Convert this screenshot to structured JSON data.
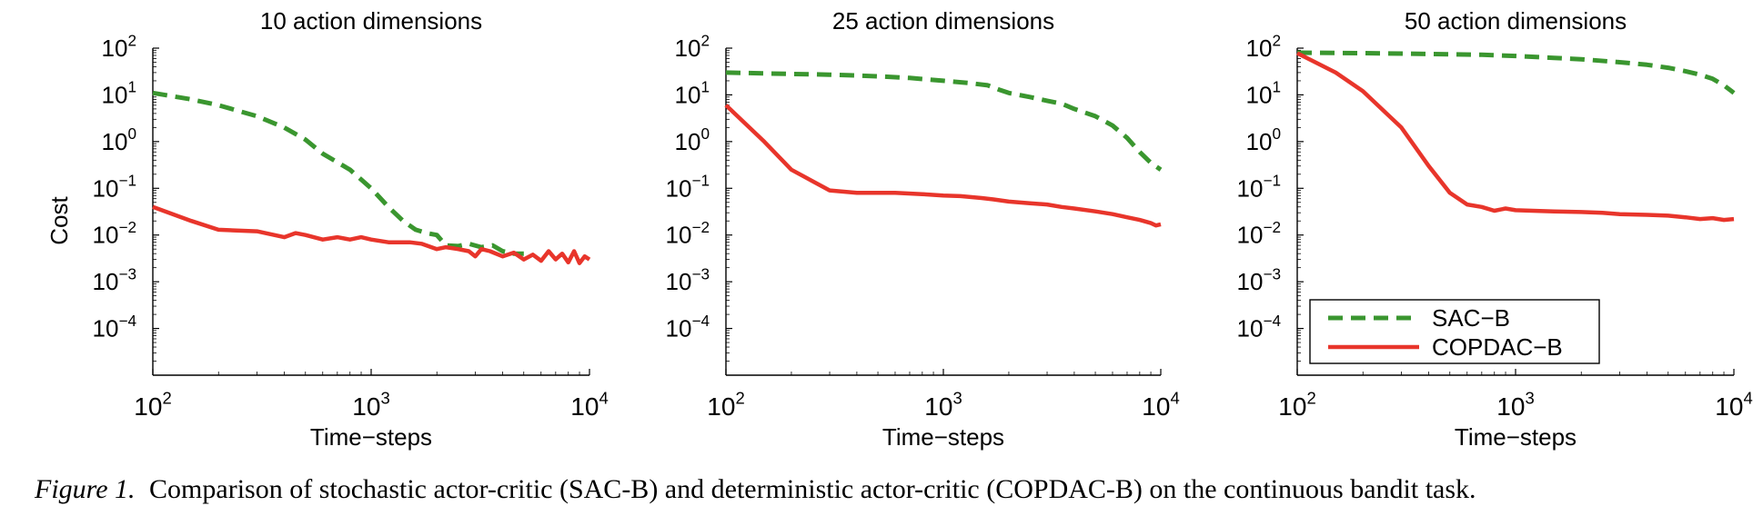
{
  "chart_data": [
    {
      "type": "line",
      "title": "10 action dimensions",
      "xlabel": "Time−steps",
      "ylabel": "Cost",
      "xscale": "log",
      "yscale": "log",
      "xlim": [
        100,
        10000
      ],
      "ylim": [
        1e-05,
        100
      ],
      "x_ticks": [
        {
          "exp": "2"
        },
        {
          "exp": "3"
        },
        {
          "exp": "4"
        }
      ],
      "y_ticks": [
        {
          "exp": "2"
        },
        {
          "exp": "1"
        },
        {
          "exp": "0"
        },
        {
          "exp": "−1"
        },
        {
          "exp": "−2"
        },
        {
          "exp": "−3"
        },
        {
          "exp": "−4"
        }
      ],
      "series": [
        {
          "name": "SAC−B",
          "color": "#3a962f",
          "dash": true,
          "points": [
            [
              100,
              11
            ],
            [
              150,
              8
            ],
            [
              200,
              6
            ],
            [
              300,
              3.5
            ],
            [
              400,
              2
            ],
            [
              500,
              1.1
            ],
            [
              600,
              0.55
            ],
            [
              800,
              0.25
            ],
            [
              1000,
              0.1
            ],
            [
              1200,
              0.04
            ],
            [
              1400,
              0.02
            ],
            [
              1600,
              0.013
            ],
            [
              1800,
              0.011
            ],
            [
              2000,
              0.01
            ],
            [
              2200,
              0.006
            ],
            [
              2500,
              0.0058
            ],
            [
              2800,
              0.0065
            ],
            [
              3200,
              0.0055
            ],
            [
              3600,
              0.006
            ],
            [
              4000,
              0.0045
            ],
            [
              4500,
              0.004
            ],
            [
              5000,
              0.004
            ]
          ]
        },
        {
          "name": "COPDAC−B",
          "color": "#e8352b",
          "dash": false,
          "points": [
            [
              100,
              0.04
            ],
            [
              150,
              0.02
            ],
            [
              200,
              0.013
            ],
            [
              300,
              0.012
            ],
            [
              400,
              0.009
            ],
            [
              450,
              0.011
            ],
            [
              500,
              0.01
            ],
            [
              600,
              0.008
            ],
            [
              700,
              0.009
            ],
            [
              800,
              0.008
            ],
            [
              900,
              0.009
            ],
            [
              1000,
              0.008
            ],
            [
              1200,
              0.007
            ],
            [
              1500,
              0.007
            ],
            [
              1700,
              0.0065
            ],
            [
              2000,
              0.005
            ],
            [
              2200,
              0.0055
            ],
            [
              2500,
              0.005
            ],
            [
              2800,
              0.0045
            ],
            [
              3000,
              0.0035
            ],
            [
              3200,
              0.005
            ],
            [
              3500,
              0.0045
            ],
            [
              4000,
              0.0035
            ],
            [
              4500,
              0.0042
            ],
            [
              5000,
              0.003
            ],
            [
              5500,
              0.0038
            ],
            [
              6000,
              0.0028
            ],
            [
              6500,
              0.0045
            ],
            [
              7000,
              0.003
            ],
            [
              7500,
              0.004
            ],
            [
              8000,
              0.0026
            ],
            [
              8500,
              0.0045
            ],
            [
              9000,
              0.0025
            ],
            [
              9500,
              0.0035
            ],
            [
              10000,
              0.003
            ]
          ]
        }
      ]
    },
    {
      "type": "line",
      "title": "25 action dimensions",
      "xlabel": "Time−steps",
      "ylabel": "",
      "xscale": "log",
      "yscale": "log",
      "xlim": [
        100,
        10000
      ],
      "ylim": [
        1e-05,
        100
      ],
      "x_ticks": [
        {
          "exp": "2"
        },
        {
          "exp": "3"
        },
        {
          "exp": "4"
        }
      ],
      "y_ticks": [
        {
          "exp": "2"
        },
        {
          "exp": "1"
        },
        {
          "exp": "0"
        },
        {
          "exp": "−1"
        },
        {
          "exp": "−2"
        },
        {
          "exp": "−3"
        },
        {
          "exp": "−4"
        }
      ],
      "series": [
        {
          "name": "SAC−B",
          "color": "#3a962f",
          "dash": true,
          "points": [
            [
              100,
              30
            ],
            [
              200,
              28
            ],
            [
              300,
              27
            ],
            [
              400,
              26
            ],
            [
              500,
              25
            ],
            [
              700,
              23
            ],
            [
              1000,
              20
            ],
            [
              1300,
              18
            ],
            [
              1600,
              16
            ],
            [
              1800,
              13
            ],
            [
              2000,
              11
            ],
            [
              2500,
              9
            ],
            [
              3000,
              7.5
            ],
            [
              3500,
              6.5
            ],
            [
              4000,
              5
            ],
            [
              5000,
              3.5
            ],
            [
              6000,
              2.2
            ],
            [
              7000,
              1.2
            ],
            [
              8000,
              0.6
            ],
            [
              9000,
              0.35
            ],
            [
              10000,
              0.25
            ]
          ]
        },
        {
          "name": "COPDAC−B",
          "color": "#e8352b",
          "dash": false,
          "points": [
            [
              100,
              6
            ],
            [
              150,
              1
            ],
            [
              200,
              0.25
            ],
            [
              300,
              0.09
            ],
            [
              400,
              0.08
            ],
            [
              600,
              0.08
            ],
            [
              800,
              0.075
            ],
            [
              1000,
              0.07
            ],
            [
              1200,
              0.068
            ],
            [
              1500,
              0.062
            ],
            [
              1700,
              0.058
            ],
            [
              2000,
              0.052
            ],
            [
              2500,
              0.048
            ],
            [
              3000,
              0.045
            ],
            [
              3500,
              0.04
            ],
            [
              4000,
              0.037
            ],
            [
              5000,
              0.032
            ],
            [
              6000,
              0.028
            ],
            [
              7000,
              0.024
            ],
            [
              8000,
              0.021
            ],
            [
              9000,
              0.018
            ],
            [
              9500,
              0.016
            ],
            [
              10000,
              0.017
            ]
          ]
        }
      ]
    },
    {
      "type": "line",
      "title": "50 action dimensions",
      "xlabel": "Time−steps",
      "ylabel": "",
      "xscale": "log",
      "yscale": "log",
      "xlim": [
        100,
        10000
      ],
      "ylim": [
        1e-05,
        100
      ],
      "x_ticks": [
        {
          "exp": "2"
        },
        {
          "exp": "3"
        },
        {
          "exp": "4"
        }
      ],
      "y_ticks": [
        {
          "exp": "2"
        },
        {
          "exp": "1"
        },
        {
          "exp": "0"
        },
        {
          "exp": "−1"
        },
        {
          "exp": "−2"
        },
        {
          "exp": "−3"
        },
        {
          "exp": "−4"
        }
      ],
      "legend": "bottom-left",
      "series": [
        {
          "name": "SAC−B",
          "color": "#3a962f",
          "dash": true,
          "points": [
            [
              100,
              80
            ],
            [
              200,
              78
            ],
            [
              400,
              75
            ],
            [
              700,
              72
            ],
            [
              1000,
              68
            ],
            [
              1500,
              62
            ],
            [
              2000,
              58
            ],
            [
              3000,
              50
            ],
            [
              4000,
              44
            ],
            [
              5000,
              38
            ],
            [
              6000,
              32
            ],
            [
              7000,
              27
            ],
            [
              8000,
              22
            ],
            [
              9000,
              16
            ],
            [
              10000,
              11
            ]
          ]
        },
        {
          "name": "COPDAC−B",
          "color": "#e8352b",
          "dash": false,
          "points": [
            [
              100,
              78
            ],
            [
              150,
              30
            ],
            [
              200,
              12
            ],
            [
              300,
              2
            ],
            [
              400,
              0.3
            ],
            [
              500,
              0.08
            ],
            [
              600,
              0.045
            ],
            [
              700,
              0.04
            ],
            [
              800,
              0.033
            ],
            [
              900,
              0.037
            ],
            [
              1000,
              0.034
            ],
            [
              1200,
              0.033
            ],
            [
              1500,
              0.032
            ],
            [
              2000,
              0.031
            ],
            [
              2500,
              0.03
            ],
            [
              3000,
              0.028
            ],
            [
              4000,
              0.027
            ],
            [
              5000,
              0.026
            ],
            [
              6000,
              0.024
            ],
            [
              7000,
              0.022
            ],
            [
              8000,
              0.023
            ],
            [
              9000,
              0.021
            ],
            [
              10000,
              0.022
            ]
          ]
        }
      ]
    }
  ],
  "caption": {
    "label": "Figure 1.",
    "text": "Comparison of stochastic actor-critic (SAC-B) and deterministic actor-critic (COPDAC-B) on the continuous bandit task."
  }
}
